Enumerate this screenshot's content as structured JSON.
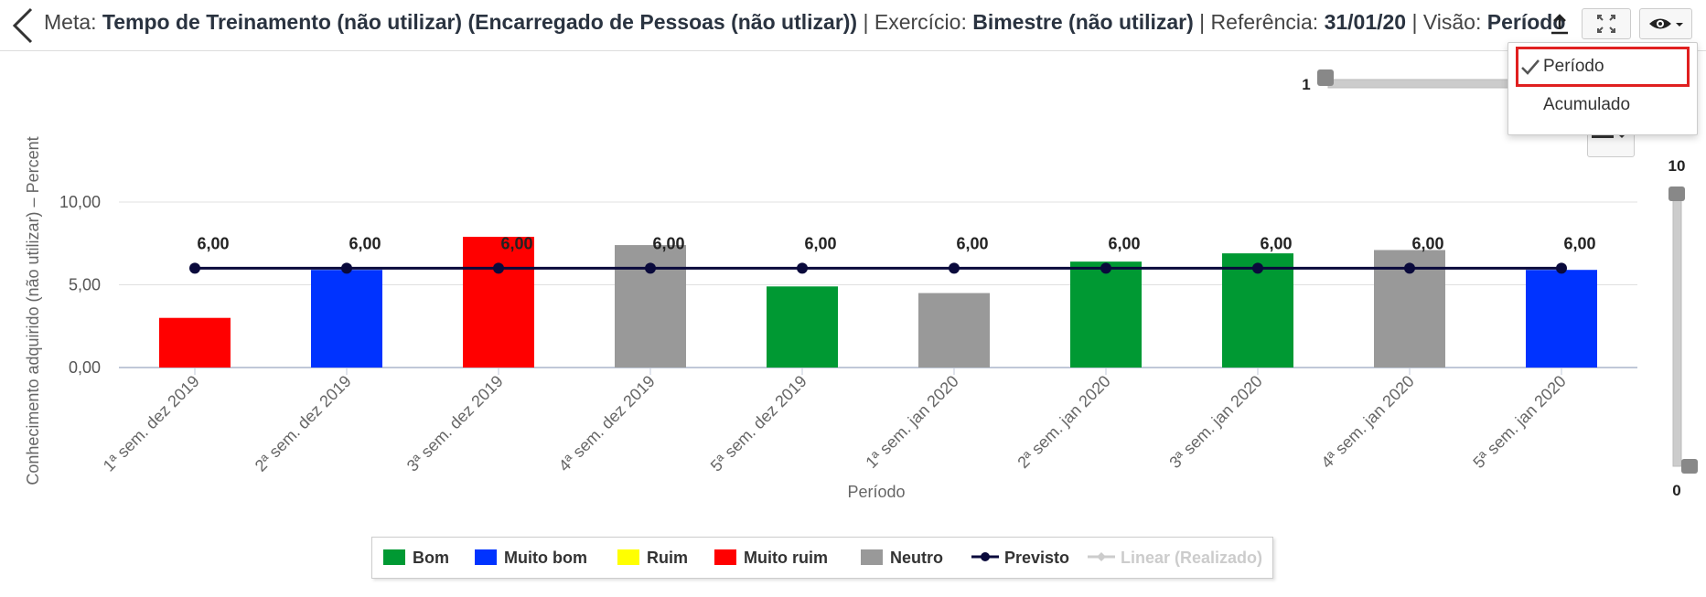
{
  "header": {
    "meta_label": "Meta:",
    "meta_value": "Tempo de Treinamento (não utilizar) (Encarregado de Pessoas (não utlizar))",
    "sep1": "|",
    "exercicio_label": "Exercício:",
    "exercicio_value": "Bimestre (não utilizar)",
    "sep2": "|",
    "referencia_label": "Referência:",
    "referencia_value": "31/01/20",
    "sep3": "|",
    "visao_label": "Visão:",
    "visao_value": "Período"
  },
  "view_menu": {
    "items": [
      {
        "label": "Período",
        "checked": true
      },
      {
        "label": "Acumulado",
        "checked": false
      }
    ]
  },
  "sliders": {
    "horizontal_min_label": "1",
    "vertical_top_label": "10",
    "vertical_bottom_label": "0"
  },
  "colors": {
    "bom": "#009933",
    "muito_bom": "#0033ff",
    "ruim": "#ffff00",
    "muito_ruim": "#ff0000",
    "neutro": "#999999",
    "previsto": "#0a0a3c",
    "linear": "#cccccc"
  },
  "icons": {
    "back": "chevron-left-icon",
    "upload": "upload-icon",
    "expand": "expand-icon",
    "eye": "eye-icon",
    "check": "check-icon",
    "menu": "hamburger-menu-icon"
  },
  "chart_data": {
    "type": "bar",
    "ylabel": "Conhecimento adquirido (não utilizar) – Percent",
    "xlabel": "Período",
    "ylim": [
      0,
      10
    ],
    "y_ticks": [
      {
        "value": 0,
        "label": "0,00"
      },
      {
        "value": 5,
        "label": "5,00"
      },
      {
        "value": 10,
        "label": "10,00"
      }
    ],
    "grid": true,
    "legend_position": "bottom",
    "categories": [
      "1ª sem. dez 2019",
      "2ª sem. dez 2019",
      "3ª sem. dez 2019",
      "4ª sem. dez 2019",
      "5ª sem. dez 2019",
      "1ª sem. jan 2020",
      "2ª sem. jan 2020",
      "3ª sem. jan 2020",
      "4ª sem. jan 2020",
      "5ª sem. jan 2020"
    ],
    "bars": [
      {
        "value": 3.0,
        "status": "Muito ruim"
      },
      {
        "value": 5.9,
        "status": "Muito bom"
      },
      {
        "value": 7.9,
        "status": "Muito ruim"
      },
      {
        "value": 7.4,
        "status": "Neutro"
      },
      {
        "value": 4.9,
        "status": "Bom"
      },
      {
        "value": 4.5,
        "status": "Neutro"
      },
      {
        "value": 6.4,
        "status": "Bom"
      },
      {
        "value": 6.9,
        "status": "Bom"
      },
      {
        "value": 7.1,
        "status": "Neutro"
      },
      {
        "value": 5.9,
        "status": "Muito bom"
      }
    ],
    "series": [
      {
        "name": "Previsto",
        "type": "line",
        "values": [
          6,
          6,
          6,
          6,
          6,
          6,
          6,
          6,
          6,
          6
        ],
        "labels": [
          "6,00",
          "6,00",
          "6,00",
          "6,00",
          "6,00",
          "6,00",
          "6,00",
          "6,00",
          "6,00",
          "6,00"
        ]
      }
    ],
    "legend": [
      {
        "name": "Bom",
        "kind": "box",
        "color_key": "bom",
        "enabled": true
      },
      {
        "name": "Muito bom",
        "kind": "box",
        "color_key": "muito_bom",
        "enabled": true
      },
      {
        "name": "Ruim",
        "kind": "box",
        "color_key": "ruim",
        "enabled": true
      },
      {
        "name": "Muito ruim",
        "kind": "box",
        "color_key": "muito_ruim",
        "enabled": true
      },
      {
        "name": "Neutro",
        "kind": "box",
        "color_key": "neutro",
        "enabled": true
      },
      {
        "name": "Previsto",
        "kind": "line",
        "color_key": "previsto",
        "enabled": true
      },
      {
        "name": "Linear (Realizado)",
        "kind": "line",
        "color_key": "linear",
        "enabled": false
      }
    ]
  }
}
